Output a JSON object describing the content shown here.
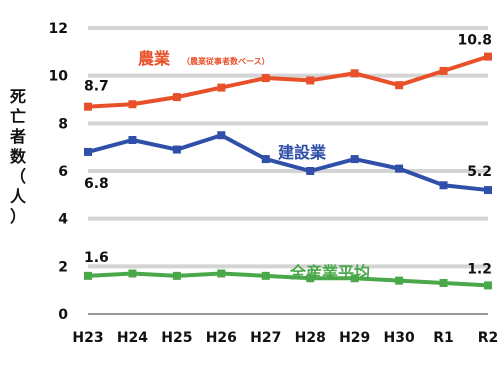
{
  "chart_data": {
    "type": "line",
    "title": "",
    "ylabel": "死亡者数（人）",
    "xlabel": "",
    "categories": [
      "H23",
      "H24",
      "H25",
      "H26",
      "H27",
      "H28",
      "H29",
      "H30",
      "R1",
      "R2"
    ],
    "ylim": [
      0,
      12
    ],
    "yticks": [
      0,
      2,
      4,
      6,
      8,
      10,
      12
    ],
    "grid": true,
    "legend": "inline-labels",
    "series": [
      {
        "name": "農業",
        "note": "（農業従事者数ベース）",
        "color": "#e8502a",
        "values": [
          8.7,
          8.8,
          9.1,
          9.5,
          9.9,
          9.8,
          10.1,
          9.6,
          10.2,
          10.8
        ],
        "start_label": "8.7",
        "end_label": "10.8"
      },
      {
        "name": "建設業",
        "color": "#2f4fa8",
        "values": [
          6.8,
          7.3,
          6.9,
          7.5,
          6.5,
          6.0,
          6.5,
          6.1,
          5.4,
          5.2
        ],
        "start_label": "6.8",
        "end_label": "5.2"
      },
      {
        "name": "全産業平均",
        "color": "#4aa84a",
        "values": [
          1.6,
          1.7,
          1.6,
          1.7,
          1.6,
          1.5,
          1.5,
          1.4,
          1.3,
          1.2
        ],
        "start_label": "1.6",
        "end_label": "1.2"
      }
    ]
  }
}
